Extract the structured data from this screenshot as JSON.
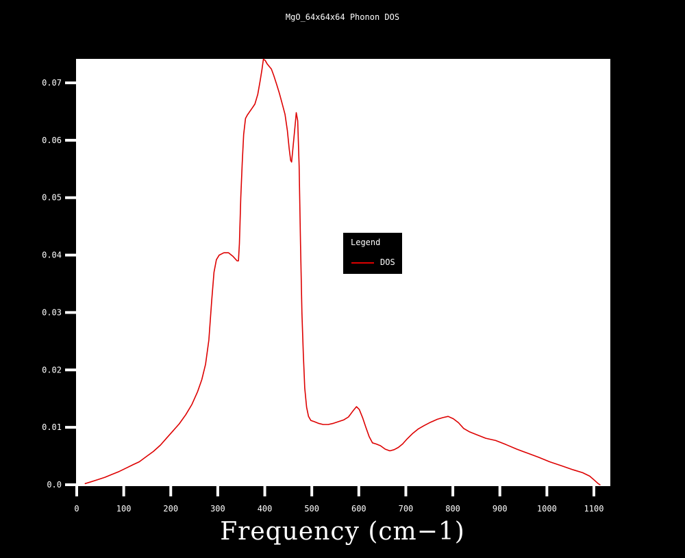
{
  "window": {
    "background_color": "#000000",
    "plot_background_color": "#ffffff",
    "text_color": "#ffffff"
  },
  "chart_data": {
    "type": "line",
    "title": "MgO_64x64x64 Phonon DOS",
    "xlabel": "Frequency (cm−1)",
    "ylabel": "",
    "xlim": [
      0,
      1135
    ],
    "ylim": [
      0,
      0.0742
    ],
    "grid": false,
    "legend_position": "center",
    "x_ticks": {
      "values": [
        0,
        100,
        200,
        300,
        400,
        500,
        600,
        700,
        800,
        900,
        1000,
        1100
      ],
      "labels": [
        "0",
        "100",
        "200",
        "300",
        "400",
        "500",
        "600",
        "700",
        "800",
        "900",
        "1000",
        "1100"
      ]
    },
    "y_ticks": {
      "values": [
        0,
        0.01,
        0.02,
        0.03,
        0.04,
        0.05,
        0.06,
        0.07
      ],
      "labels": [
        "0.0",
        "0.01",
        "0.02",
        "0.03",
        "0.04",
        "0.05",
        "0.06",
        "0.07"
      ]
    },
    "legend": {
      "title": "Legend",
      "entries": [
        {
          "label": "DOS",
          "color": "#dd0000"
        }
      ]
    },
    "series": [
      {
        "name": "DOS",
        "color": "#dd0000",
        "points": [
          [
            18,
            0.0002
          ],
          [
            30,
            0.0005
          ],
          [
            45,
            0.0009
          ],
          [
            60,
            0.0013
          ],
          [
            75,
            0.0018
          ],
          [
            90,
            0.0023
          ],
          [
            105,
            0.0029
          ],
          [
            120,
            0.0035
          ],
          [
            133,
            0.004
          ],
          [
            148,
            0.0049
          ],
          [
            163,
            0.0058
          ],
          [
            178,
            0.0069
          ],
          [
            192,
            0.0082
          ],
          [
            205,
            0.0094
          ],
          [
            218,
            0.0106
          ],
          [
            232,
            0.0122
          ],
          [
            245,
            0.014
          ],
          [
            257,
            0.0162
          ],
          [
            266,
            0.0183
          ],
          [
            274,
            0.021
          ],
          [
            281,
            0.0252
          ],
          [
            287,
            0.032
          ],
          [
            292,
            0.037
          ],
          [
            297,
            0.0392
          ],
          [
            303,
            0.04
          ],
          [
            313,
            0.0404
          ],
          [
            323,
            0.0404
          ],
          [
            332,
            0.0398
          ],
          [
            341,
            0.039
          ],
          [
            344,
            0.039
          ],
          [
            346,
            0.042
          ],
          [
            349,
            0.05
          ],
          [
            352,
            0.056
          ],
          [
            355,
            0.061
          ],
          [
            359,
            0.0638
          ],
          [
            363,
            0.0644
          ],
          [
            368,
            0.065
          ],
          [
            374,
            0.0657
          ],
          [
            379,
            0.0663
          ],
          [
            385,
            0.068
          ],
          [
            390,
            0.0703
          ],
          [
            394,
            0.0723
          ],
          [
            397,
            0.0741
          ],
          [
            401,
            0.0739
          ],
          [
            405,
            0.0733
          ],
          [
            410,
            0.0728
          ],
          [
            414,
            0.0724
          ],
          [
            419,
            0.0713
          ],
          [
            425,
            0.0698
          ],
          [
            431,
            0.0682
          ],
          [
            437,
            0.0664
          ],
          [
            443,
            0.0645
          ],
          [
            448,
            0.0617
          ],
          [
            452,
            0.0585
          ],
          [
            455,
            0.0565
          ],
          [
            457,
            0.0562
          ],
          [
            460,
            0.0587
          ],
          [
            464,
            0.0622
          ],
          [
            467,
            0.0648
          ],
          [
            470,
            0.0634
          ],
          [
            473,
            0.0555
          ],
          [
            476,
            0.042
          ],
          [
            479,
            0.0298
          ],
          [
            482,
            0.0228
          ],
          [
            485,
            0.0168
          ],
          [
            489,
            0.0135
          ],
          [
            493,
            0.0119
          ],
          [
            498,
            0.0112
          ],
          [
            505,
            0.011
          ],
          [
            514,
            0.0107
          ],
          [
            524,
            0.0105
          ],
          [
            535,
            0.0105
          ],
          [
            546,
            0.0107
          ],
          [
            557,
            0.011
          ],
          [
            568,
            0.0113
          ],
          [
            578,
            0.0118
          ],
          [
            588,
            0.0129
          ],
          [
            595,
            0.0136
          ],
          [
            601,
            0.0131
          ],
          [
            608,
            0.0117
          ],
          [
            615,
            0.01
          ],
          [
            622,
            0.0084
          ],
          [
            629,
            0.0073
          ],
          [
            637,
            0.0071
          ],
          [
            646,
            0.0068
          ],
          [
            656,
            0.0062
          ],
          [
            666,
            0.0059
          ],
          [
            675,
            0.0061
          ],
          [
            684,
            0.0065
          ],
          [
            693,
            0.0071
          ],
          [
            703,
            0.008
          ],
          [
            714,
            0.0089
          ],
          [
            726,
            0.0097
          ],
          [
            739,
            0.0103
          ],
          [
            753,
            0.0109
          ],
          [
            767,
            0.0114
          ],
          [
            779,
            0.0117
          ],
          [
            790,
            0.0119
          ],
          [
            801,
            0.0115
          ],
          [
            812,
            0.0108
          ],
          [
            823,
            0.0098
          ],
          [
            836,
            0.0092
          ],
          [
            851,
            0.0087
          ],
          [
            870,
            0.0081
          ],
          [
            891,
            0.0077
          ],
          [
            913,
            0.007
          ],
          [
            936,
            0.0062
          ],
          [
            959,
            0.0055
          ],
          [
            982,
            0.0048
          ],
          [
            1006,
            0.004
          ],
          [
            1031,
            0.0033
          ],
          [
            1056,
            0.0026
          ],
          [
            1076,
            0.0021
          ],
          [
            1091,
            0.0015
          ],
          [
            1101,
            0.0008
          ],
          [
            1109,
            0.0002
          ],
          [
            1113,
            0.0
          ]
        ]
      }
    ]
  }
}
